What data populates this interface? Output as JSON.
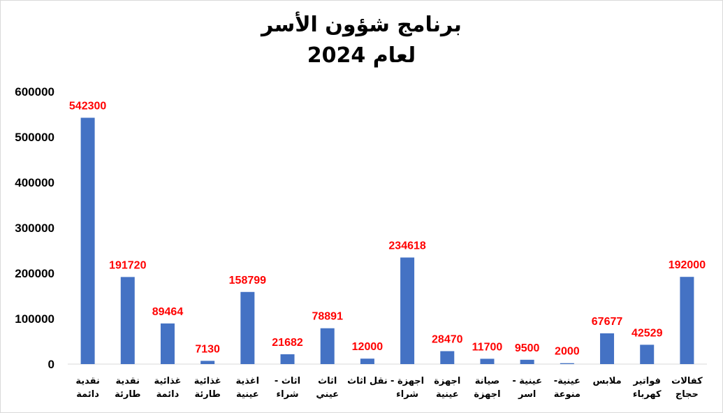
{
  "chart_data": {
    "type": "bar",
    "title": "برنامج شؤون الأسر",
    "subtitle": "لعام 2024",
    "xlabel": "",
    "ylabel": "",
    "ylim": [
      0,
      600000
    ],
    "yticks": [
      "0",
      "100000",
      "200000",
      "300000",
      "400000",
      "500000",
      "600000"
    ],
    "grid": false,
    "legend": "none",
    "bar_color": "#4472C4",
    "label_color": "#FF0000",
    "categories": [
      [
        "نقدية",
        "دائمة"
      ],
      [
        "نقدية",
        "طارئة"
      ],
      [
        "غذائية",
        "دائمة"
      ],
      [
        "غذائية",
        "طارئة"
      ],
      [
        "اغذية",
        "عينية"
      ],
      [
        "اثاث -",
        "شراء"
      ],
      [
        "اثاث",
        "عيني"
      ],
      [
        "نقل اثاث"
      ],
      [
        "اجهزة -",
        "شراء"
      ],
      [
        "اجهزة",
        "عينية"
      ],
      [
        "صيانة",
        "اجهزة"
      ],
      [
        "عينية -",
        "اسر"
      ],
      [
        "عينية-",
        "منوعة"
      ],
      [
        "ملابس"
      ],
      [
        "فواتير",
        "كهرباء"
      ],
      [
        "كفالات",
        "حجاج"
      ]
    ],
    "values": [
      542300,
      191720,
      89464,
      7130,
      158799,
      21682,
      78891,
      12000,
      234618,
      28470,
      11700,
      9500,
      2000,
      67677,
      42529,
      192000
    ],
    "data_labels": [
      "542300",
      "191720",
      "89464",
      "7130",
      "158799",
      "21682",
      "78891",
      "12000",
      "234618",
      "28470",
      "11700",
      "9500",
      "2000",
      "67677",
      "42529",
      "192000"
    ]
  }
}
